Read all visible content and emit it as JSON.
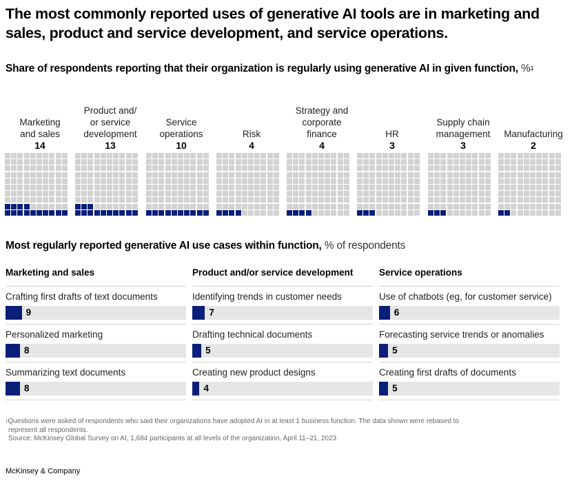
{
  "title": "The most commonly reported uses of generative AI tools are in marketing and sales, product and service development, and service operations.",
  "subtitle": {
    "bold": "Share of respondents reporting that their organization is regularly using generative AI in given function,",
    "unit": " %",
    "footnote_marker": "1"
  },
  "colors": {
    "accent": "#0b1f78",
    "cell_empty": "#d2d2d2",
    "track": "#e6e6e6",
    "divider": "#d2d2d2"
  },
  "chart_data": [
    {
      "type": "waffle",
      "title": "Share of respondents reporting that their organization is regularly using generative AI in given function, %",
      "grid": "10x10",
      "categories": [
        "Marketing and sales",
        "Product and/ or service development",
        "Service operations",
        "Risk",
        "Strategy and corporate finance",
        "HR",
        "Supply chain management",
        "Manufacturing"
      ],
      "values": [
        14,
        13,
        10,
        4,
        4,
        3,
        3,
        2
      ],
      "items": [
        {
          "label_lines": [
            "Marketing",
            "and sales"
          ],
          "value": 14
        },
        {
          "label_lines": [
            "Product and/",
            "or service",
            "development"
          ],
          "value": 13
        },
        {
          "label_lines": [
            "Service",
            "operations"
          ],
          "value": 10
        },
        {
          "label_lines": [
            "Risk"
          ],
          "value": 4
        },
        {
          "label_lines": [
            "Strategy and",
            "corporate",
            "finance"
          ],
          "value": 4
        },
        {
          "label_lines": [
            "HR"
          ],
          "value": 3
        },
        {
          "label_lines": [
            "Supply chain",
            "management"
          ],
          "value": 3
        },
        {
          "label_lines": [
            "Manufacturing"
          ],
          "value": 2
        }
      ]
    },
    {
      "type": "bar",
      "title": "Most regularly reported generative AI use cases within function, % of respondents",
      "xlim": [
        0,
        100
      ],
      "groups": [
        {
          "name": "Marketing and sales",
          "items": [
            {
              "label": "Crafting first drafts of text documents",
              "value": 9
            },
            {
              "label": "Personalized marketing",
              "value": 8
            },
            {
              "label": "Summarizing text documents",
              "value": 8
            }
          ]
        },
        {
          "name": "Product and/or service development",
          "items": [
            {
              "label": "Identifying trends in customer needs",
              "value": 7
            },
            {
              "label": "Drafting technical documents",
              "value": 5
            },
            {
              "label": "Creating new product designs",
              "value": 4
            }
          ]
        },
        {
          "name": "Service operations",
          "items": [
            {
              "label": "Use of chatbots (eg, for customer service)",
              "value": 6
            },
            {
              "label": "Forecasting service trends or anomalies",
              "value": 5
            },
            {
              "label": "Creating first drafts of documents",
              "value": 5
            }
          ]
        }
      ]
    }
  ],
  "section2": {
    "bold": "Most regularly reported generative AI use cases within function,",
    "unit": " % of respondents"
  },
  "footnote": {
    "marker": "1",
    "line1": "Questions were asked of respondents who said their organizations have adopted AI in at least 1 business function. The data shown were rebased to",
    "line2": "represent all respondents.",
    "source": "Source: McKinsey Global Survey on AI, 1,684 participants at all levels of the organization, April 11–21, 2023"
  },
  "brand": "McKinsey & Company"
}
